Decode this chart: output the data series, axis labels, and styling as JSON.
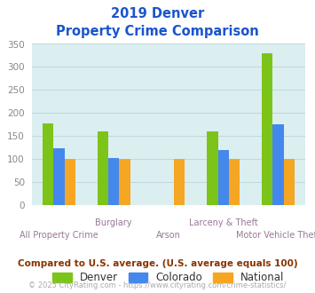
{
  "title_line1": "2019 Denver",
  "title_line2": "Property Crime Comparison",
  "series": {
    "Denver": [
      178,
      161,
      null,
      161,
      330
    ],
    "Colorado": [
      124,
      103,
      null,
      119,
      175
    ],
    "National": [
      100,
      100,
      100,
      100,
      100
    ]
  },
  "colors": {
    "Denver": "#7dc41a",
    "Colorado": "#4488ee",
    "National": "#f5a623"
  },
  "ylim": [
    0,
    350
  ],
  "yticks": [
    0,
    50,
    100,
    150,
    200,
    250,
    300,
    350
  ],
  "plot_bg": "#dbeef0",
  "title_color": "#1a55cc",
  "xlabel_color": "#997799",
  "footer_note": "Compared to U.S. average. (U.S. average equals 100)",
  "footer_note_color": "#883300",
  "copyright_text": "© 2025 CityRating.com - https://www.cityrating.com/crime-statistics/",
  "copyright_color": "#aaaaaa",
  "bar_width": 0.2,
  "group_positions": [
    0,
    1,
    2,
    3,
    4
  ],
  "bottom_labels": {
    "0": "All Property Crime",
    "2": "Arson",
    "4": "Motor Vehicle Theft"
  },
  "top_labels": {
    "1": "Burglary",
    "3": "Larceny & Theft"
  },
  "ytick_color": "#888888",
  "grid_color": "#c0d8dc"
}
